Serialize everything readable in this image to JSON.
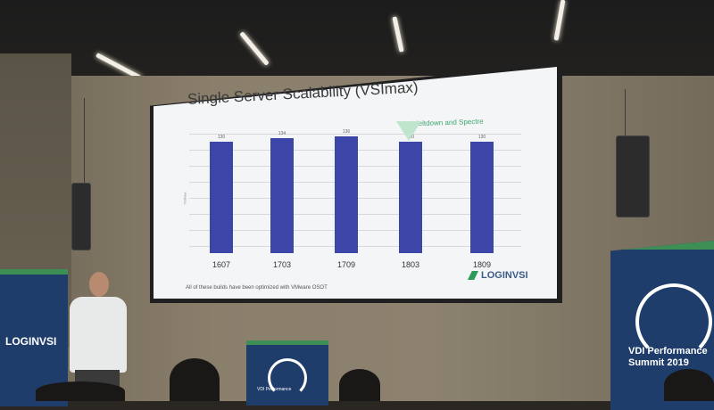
{
  "slide": {
    "title": "Single Server Scalability (VSImax)",
    "annotation": "Meltdown and Spectre",
    "footnote": "All of these builds have been optimized with VMware OSOT",
    "logo_text": "LOGINVSI"
  },
  "chart_data": {
    "type": "bar",
    "categories": [
      "1607",
      "1703",
      "1709",
      "1803",
      "1809"
    ],
    "values": [
      130,
      134,
      136,
      130,
      130
    ],
    "title": "Single Server Scalability (VSImax)",
    "ylabel": "VSImax",
    "annotations": [
      "Meltdown and Spectre"
    ],
    "grid": true,
    "colors": [
      "#3b46a8"
    ]
  },
  "banners": {
    "left_logo": "LOGINVSI",
    "right_line1": "VDI Performance",
    "right_line2": "Summit 2019",
    "lectern_text": "VDI Performance"
  }
}
